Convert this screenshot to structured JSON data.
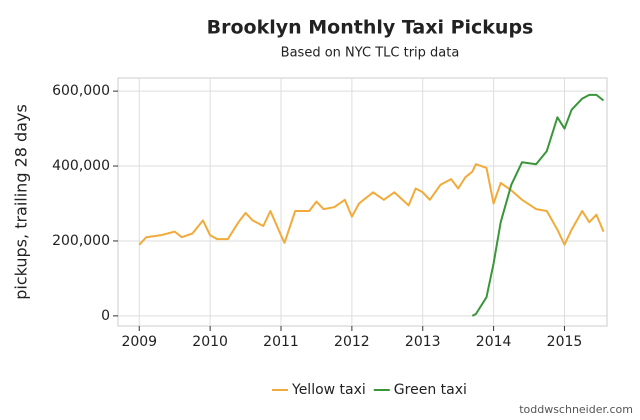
{
  "chart_data": {
    "type": "line",
    "title": "Brooklyn Monthly Taxi Pickups",
    "subtitle": "Based on NYC TLC trip data",
    "y_label": "pickups, trailing 28 days",
    "credit": "toddwschneider.com",
    "x": [
      2009.0,
      2009.1,
      2009.3,
      2009.5,
      2009.6,
      2009.75,
      2009.9,
      2010.0,
      2010.1,
      2010.25,
      2010.4,
      2010.5,
      2010.6,
      2010.75,
      2010.85,
      2011.0,
      2011.05,
      2011.2,
      2011.4,
      2011.5,
      2011.6,
      2011.75,
      2011.9,
      2012.0,
      2012.1,
      2012.3,
      2012.45,
      2012.6,
      2012.8,
      2012.9,
      2013.0,
      2013.1,
      2013.25,
      2013.4,
      2013.5,
      2013.6,
      2013.7,
      2013.75,
      2013.9,
      2014.0,
      2014.1,
      2014.25,
      2014.4,
      2014.6,
      2014.75,
      2014.9,
      2015.0,
      2015.1,
      2015.25,
      2015.35,
      2015.45,
      2015.55
    ],
    "series": [
      {
        "name": "Yellow taxi",
        "color": "#f2ab3a",
        "values": [
          190000,
          210000,
          215000,
          225000,
          210000,
          220000,
          255000,
          215000,
          205000,
          205000,
          250000,
          275000,
          255000,
          240000,
          280000,
          215000,
          195000,
          280000,
          280000,
          305000,
          285000,
          290000,
          310000,
          265000,
          300000,
          330000,
          310000,
          330000,
          295000,
          340000,
          330000,
          310000,
          350000,
          365000,
          340000,
          370000,
          385000,
          405000,
          395000,
          300000,
          355000,
          335000,
          310000,
          285000,
          280000,
          230000,
          190000,
          230000,
          280000,
          250000,
          270000,
          225000
        ]
      },
      {
        "name": "Green taxi",
        "color": "#3a963a",
        "values": [
          null,
          null,
          null,
          null,
          null,
          null,
          null,
          null,
          null,
          null,
          null,
          null,
          null,
          null,
          null,
          null,
          null,
          null,
          null,
          null,
          null,
          null,
          null,
          null,
          null,
          null,
          null,
          null,
          null,
          null,
          null,
          null,
          null,
          null,
          null,
          null,
          0,
          5000,
          50000,
          140000,
          250000,
          350000,
          410000,
          405000,
          440000,
          530000,
          500000,
          550000,
          580000,
          590000,
          590000,
          575000
        ]
      }
    ],
    "xlim": [
      2008.7,
      2015.6
    ],
    "xticks": [
      2009,
      2010,
      2011,
      2012,
      2013,
      2014,
      2015
    ],
    "ylim": [
      -27000,
      635000
    ],
    "yticks": [
      0,
      {
        "value": 200000,
        "label": "200,000"
      },
      {
        "value": 400000,
        "label": "400,000"
      },
      {
        "value": 600000,
        "label": "600,000"
      }
    ],
    "grid": true,
    "legend": "bottom"
  }
}
